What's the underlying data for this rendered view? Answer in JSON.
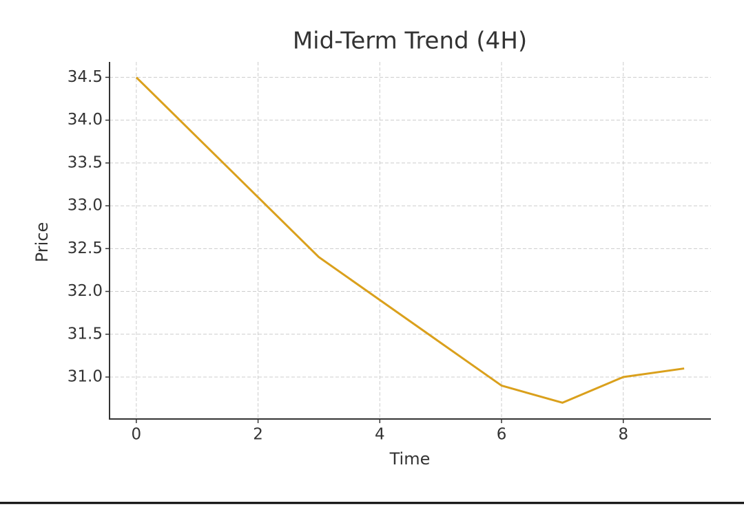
{
  "chart_data": {
    "type": "line",
    "title": "Mid-Term Trend (4H)",
    "x_label": "Time",
    "y_label": "Price",
    "x": [
      0,
      1,
      2,
      3,
      4,
      5,
      6,
      7,
      8,
      9
    ],
    "series": [
      {
        "name": "Price",
        "color": "#daa01c",
        "values": [
          34.5,
          33.8,
          33.1,
          32.4,
          31.9,
          31.4,
          30.9,
          30.7,
          31.0,
          31.1
        ]
      }
    ],
    "xlim": [
      -0.44,
      9.44
    ],
    "xticks": [
      0,
      2,
      4,
      6,
      8
    ],
    "ylim": [
      30.51,
      34.68
    ],
    "yticks": [
      {
        "value": 31,
        "label": "31.0"
      },
      31.5,
      {
        "value": 32,
        "label": "32.0"
      },
      32.5,
      {
        "value": 33,
        "label": "33.0"
      },
      33.5,
      {
        "value": 34,
        "label": "34.0"
      },
      34.5
    ],
    "grid": true,
    "legend": false
  }
}
